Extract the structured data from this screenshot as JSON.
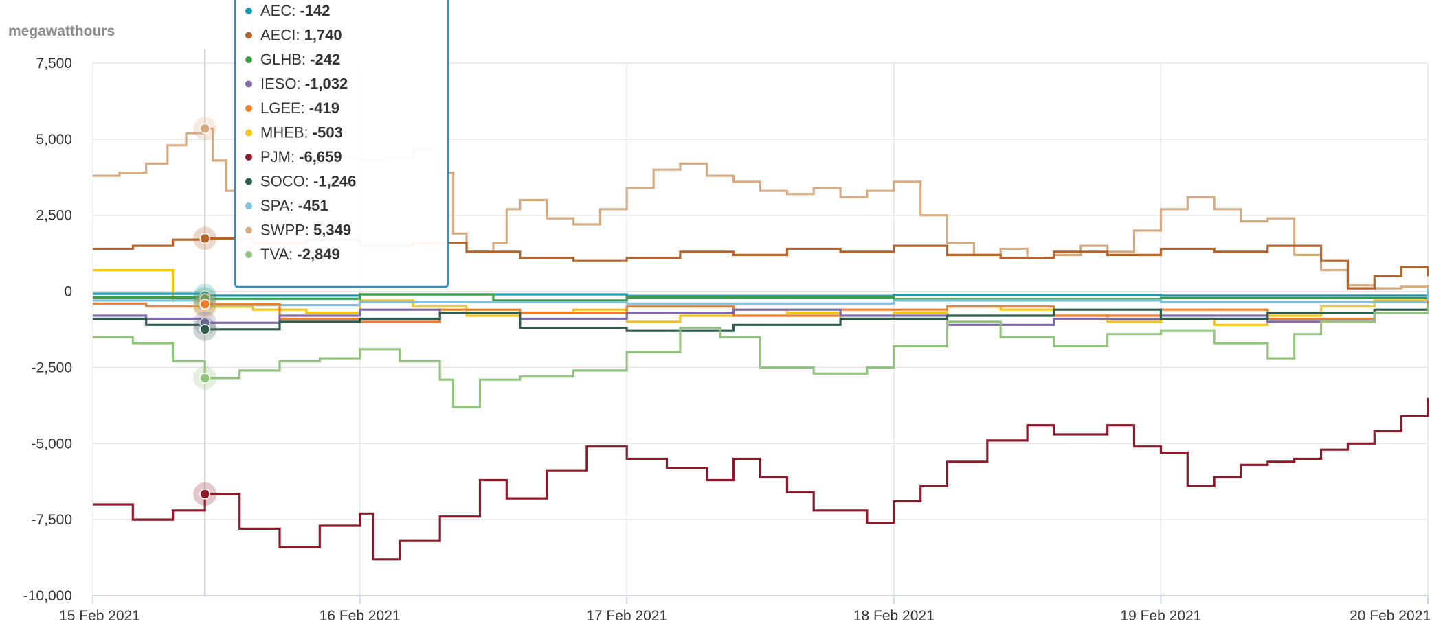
{
  "chart_data": {
    "type": "line",
    "step": true,
    "ylabel": "megawatthours",
    "ylim": [
      -10000,
      7500
    ],
    "yticks": [
      7500,
      5000,
      2500,
      0,
      -2500,
      -5000,
      -7500,
      -10000
    ],
    "ytick_labels": [
      "7,500",
      "5,000",
      "2,500",
      "0",
      "-2,500",
      "-5,000",
      "-7,500",
      "-10,000"
    ],
    "xlim": [
      0,
      5
    ],
    "xticks": [
      0,
      1,
      2,
      3,
      4,
      5
    ],
    "xtick_labels": [
      "15 Feb 2021",
      "16 Feb 2021",
      "17 Feb 2021",
      "18 Feb 2021",
      "19 Feb 2021",
      "20 Feb 2021"
    ],
    "grid": true,
    "hover_x": 0.42,
    "tooltip": [
      {
        "label": "AEC",
        "value": "-142",
        "color": "#1a9bb5"
      },
      {
        "label": "AECI",
        "value": "1,740",
        "color": "#b5652b"
      },
      {
        "label": "GLHB",
        "value": "-242",
        "color": "#3d9b47"
      },
      {
        "label": "IESO",
        "value": "-1,032",
        "color": "#7e6aa8"
      },
      {
        "label": "LGEE",
        "value": "-419",
        "color": "#ee7d2b"
      },
      {
        "label": "MHEB",
        "value": "-503",
        "color": "#f2c41a"
      },
      {
        "label": "PJM",
        "value": "-6,659",
        "color": "#8c1a2a"
      },
      {
        "label": "SOCO",
        "value": "-1,246",
        "color": "#2e5d4b"
      },
      {
        "label": "SPA",
        "value": "-451",
        "color": "#7ec3e0"
      },
      {
        "label": "SWPP",
        "value": "5,349",
        "color": "#d6ab82"
      },
      {
        "label": "TVA",
        "value": "-2,849",
        "color": "#93c47d"
      }
    ],
    "series": [
      {
        "name": "SWPP",
        "color": "#d6ab82",
        "x": [
          0,
          0.1,
          0.2,
          0.28,
          0.35,
          0.42,
          0.45,
          0.5,
          0.6,
          0.75,
          0.9,
          1.0,
          1.1,
          1.2,
          1.3,
          1.35,
          1.4,
          1.5,
          1.55,
          1.6,
          1.7,
          1.8,
          1.9,
          2.0,
          2.1,
          2.2,
          2.3,
          2.4,
          2.5,
          2.6,
          2.7,
          2.8,
          2.9,
          3.0,
          3.1,
          3.2,
          3.3,
          3.4,
          3.5,
          3.6,
          3.7,
          3.8,
          3.9,
          4.0,
          4.1,
          4.2,
          4.3,
          4.4,
          4.5,
          4.6,
          4.7,
          4.8,
          4.9,
          5.0
        ],
        "y": [
          3800,
          3900,
          4200,
          4800,
          5200,
          5349,
          4300,
          3300,
          4000,
          4500,
          4400,
          4300,
          4400,
          4700,
          3900,
          1900,
          1300,
          1600,
          2700,
          3000,
          2400,
          2200,
          2700,
          3400,
          4000,
          4200,
          3800,
          3600,
          3300,
          3200,
          3400,
          3100,
          3300,
          3600,
          2500,
          1600,
          1200,
          1400,
          1100,
          1200,
          1500,
          1300,
          2000,
          2700,
          3100,
          2700,
          2300,
          2400,
          1200,
          700,
          200,
          100,
          150,
          200
        ]
      },
      {
        "name": "AECI",
        "color": "#b5652b",
        "x": [
          0,
          0.15,
          0.3,
          0.42,
          0.6,
          0.8,
          1.0,
          1.2,
          1.4,
          1.6,
          1.8,
          2.0,
          2.2,
          2.4,
          2.6,
          2.8,
          3.0,
          3.2,
          3.4,
          3.6,
          3.8,
          4.0,
          4.2,
          4.4,
          4.6,
          4.7,
          4.8,
          4.9,
          5.0
        ],
        "y": [
          1400,
          1500,
          1700,
          1740,
          1600,
          1700,
          1500,
          1600,
          1300,
          1100,
          1000,
          1100,
          1300,
          1200,
          1400,
          1300,
          1500,
          1200,
          1100,
          1300,
          1200,
          1400,
          1300,
          1500,
          1000,
          100,
          500,
          800,
          500
        ]
      },
      {
        "name": "MHEB",
        "color": "#f2c41a",
        "x": [
          0,
          0.25,
          0.3,
          0.42,
          0.6,
          0.8,
          1.0,
          1.2,
          1.4,
          1.6,
          1.8,
          2.0,
          2.2,
          2.4,
          2.6,
          2.8,
          3.0,
          3.2,
          3.4,
          3.6,
          3.8,
          4.0,
          4.2,
          4.4,
          4.6,
          4.8,
          5.0
        ],
        "y": [
          700,
          700,
          -300,
          -503,
          -600,
          -700,
          -300,
          -500,
          -800,
          -700,
          -600,
          -1000,
          -800,
          -600,
          -700,
          -900,
          -700,
          -500,
          -600,
          -800,
          -1000,
          -900,
          -1100,
          -800,
          -500,
          -300,
          0
        ]
      },
      {
        "name": "AEC",
        "color": "#1a9bb5",
        "x": [
          0,
          0.42,
          1.0,
          2.0,
          3.0,
          4.0,
          5.0
        ],
        "y": [
          -80,
          -142,
          -100,
          -150,
          -120,
          -140,
          -60
        ]
      },
      {
        "name": "GLHB",
        "color": "#3d9b47",
        "x": [
          0,
          0.42,
          1.0,
          1.5,
          2.0,
          3.0,
          4.0,
          5.0
        ],
        "y": [
          -200,
          -242,
          -100,
          -300,
          -200,
          -250,
          -220,
          -180
        ]
      },
      {
        "name": "SPA",
        "color": "#7ec3e0",
        "x": [
          0,
          0.42,
          1.0,
          2.0,
          3.0,
          4.0,
          5.0
        ],
        "y": [
          -300,
          -451,
          -350,
          -400,
          -300,
          -350,
          100
        ]
      },
      {
        "name": "LGEE",
        "color": "#ee7d2b",
        "x": [
          0,
          0.2,
          0.42,
          0.7,
          1.0,
          1.3,
          1.6,
          2.0,
          2.4,
          2.8,
          3.2,
          3.6,
          4.0,
          4.4,
          4.8,
          5.0
        ],
        "y": [
          -400,
          -500,
          -419,
          -900,
          -1000,
          -600,
          -700,
          -500,
          -800,
          -600,
          -500,
          -800,
          -600,
          -900,
          -700,
          -300
        ]
      },
      {
        "name": "IESO",
        "color": "#7e6aa8",
        "x": [
          0,
          0.2,
          0.42,
          0.7,
          1.0,
          1.3,
          1.6,
          2.0,
          2.4,
          2.8,
          3.2,
          3.6,
          4.0,
          4.4,
          4.8,
          5.0
        ],
        "y": [
          -800,
          -900,
          -1032,
          -800,
          -600,
          -700,
          -900,
          -700,
          -600,
          -800,
          -1100,
          -900,
          -800,
          -1000,
          -700,
          -600
        ]
      },
      {
        "name": "SOCO",
        "color": "#2e5d4b",
        "x": [
          0,
          0.2,
          0.42,
          0.7,
          1.0,
          1.3,
          1.6,
          2.0,
          2.4,
          2.8,
          3.2,
          3.6,
          4.0,
          4.4,
          4.8,
          5.0
        ],
        "y": [
          -900,
          -1100,
          -1246,
          -1000,
          -900,
          -700,
          -1200,
          -1300,
          -1100,
          -900,
          -800,
          -600,
          -900,
          -700,
          -600,
          -500
        ]
      },
      {
        "name": "TVA",
        "color": "#93c47d",
        "x": [
          0,
          0.15,
          0.3,
          0.42,
          0.55,
          0.7,
          0.85,
          1.0,
          1.15,
          1.3,
          1.35,
          1.45,
          1.6,
          1.8,
          2.0,
          2.2,
          2.35,
          2.5,
          2.7,
          2.9,
          3.0,
          3.2,
          3.4,
          3.6,
          3.8,
          4.0,
          4.2,
          4.4,
          4.5,
          4.6,
          4.8,
          5.0
        ],
        "y": [
          -1500,
          -1700,
          -2300,
          -2849,
          -2600,
          -2300,
          -2200,
          -1900,
          -2300,
          -2900,
          -3800,
          -2900,
          -2800,
          -2600,
          -2000,
          -1200,
          -1500,
          -2500,
          -2700,
          -2500,
          -1800,
          -1000,
          -1500,
          -1800,
          -1400,
          -1300,
          -1700,
          -2200,
          -1400,
          -1000,
          -700,
          -400
        ]
      },
      {
        "name": "PJM",
        "color": "#8c1a2a",
        "x": [
          0,
          0.15,
          0.3,
          0.42,
          0.55,
          0.7,
          0.85,
          1.0,
          1.05,
          1.15,
          1.3,
          1.45,
          1.55,
          1.7,
          1.85,
          2.0,
          2.15,
          2.3,
          2.4,
          2.5,
          2.6,
          2.7,
          2.9,
          3.0,
          3.1,
          3.2,
          3.35,
          3.5,
          3.6,
          3.8,
          3.9,
          4.0,
          4.1,
          4.2,
          4.3,
          4.4,
          4.5,
          4.6,
          4.7,
          4.8,
          4.9,
          5.0
        ],
        "y": [
          -7000,
          -7500,
          -7200,
          -6659,
          -7800,
          -8400,
          -7700,
          -7300,
          -8800,
          -8200,
          -7400,
          -6200,
          -6800,
          -5900,
          -5100,
          -5500,
          -5800,
          -6200,
          -5500,
          -6100,
          -6600,
          -7200,
          -7600,
          -6900,
          -6400,
          -5600,
          -4900,
          -4400,
          -4700,
          -4400,
          -5100,
          -5300,
          -6400,
          -6100,
          -5700,
          -5600,
          -5500,
          -5200,
          -5000,
          -4600,
          -4100,
          -3500
        ]
      }
    ]
  }
}
